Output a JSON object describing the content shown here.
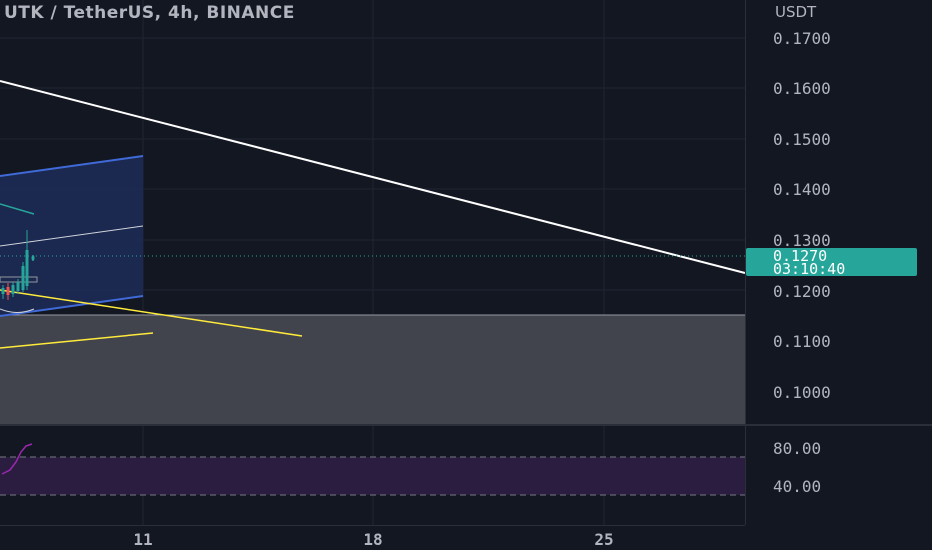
{
  "header": {
    "title": "UTK / TetherUS, 4h, BINANCE"
  },
  "price_axis": {
    "currency": "USDT",
    "ticks": [
      "0.1700",
      "0.1600",
      "0.1500",
      "0.1400",
      "0.1300",
      "0.1200",
      "0.1100",
      "0.1000"
    ],
    "last_price_label": "0.1270",
    "countdown_label": "03:10:40",
    "accent_color": "#26a69a"
  },
  "indicator_axis": {
    "ticks": [
      "80.00",
      "40.00"
    ]
  },
  "time_axis": {
    "ticks": [
      "11",
      "18",
      "25"
    ]
  },
  "colors": {
    "background": "#131722",
    "zone": "#42444d",
    "channel": "#3f6ad8",
    "trendline_white": "#ffffff",
    "trendline_yellow": "#ffeb3b",
    "rsi_band": "#2a1d40",
    "rsi_line": "#9c27b0"
  },
  "chart_data": {
    "type": "line",
    "title": "UTK / TetherUS, 4h, BINANCE",
    "price_range": [
      0.0945,
      0.1765
    ],
    "last_price": 0.127,
    "zone": [
      0.0965,
      0.1155
    ],
    "trendlines": [
      {
        "name": "descending-white",
        "start": {
          "date": "7",
          "price": 0.162
        },
        "end": {
          "date": "30",
          "price": 0.1235
        }
      }
    ],
    "rsi_levels": [
      80,
      40
    ],
    "x_ticks": [
      "11",
      "18",
      "25"
    ]
  }
}
